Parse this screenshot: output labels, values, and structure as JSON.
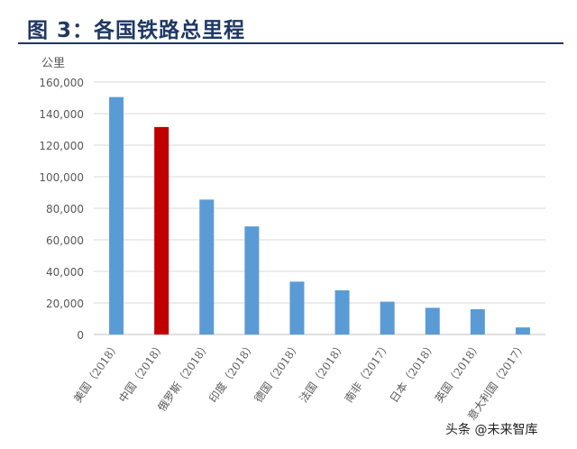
{
  "figure": {
    "title": "图 3：各国铁路总里程",
    "watermark": "头条 @未来智库"
  },
  "colors": {
    "title": "#1f3864",
    "bar_default": "#5b9bd5",
    "bar_highlight": "#c00000",
    "grid": "#d9d9d9",
    "axis": "#bfbfbf",
    "tick_text": "#595959"
  },
  "chart_data": {
    "type": "bar",
    "title": "",
    "xlabel": "",
    "ylabel": "公里",
    "ylim": [
      0,
      160000
    ],
    "yticks": [
      0,
      20000,
      40000,
      60000,
      80000,
      100000,
      120000,
      140000,
      160000
    ],
    "ytick_labels": [
      "0",
      "20,000",
      "40,000",
      "60,000",
      "80,000",
      "100,000",
      "120,000",
      "140,000",
      "160,000"
    ],
    "grid": true,
    "legend": "none",
    "categories": [
      "美国（2018）",
      "中国（2018）",
      "俄罗斯（2018）",
      "印度（2018）",
      "德国（2018）",
      "法国（2018）",
      "南非（2017）",
      "日本（2018）",
      "英国（2018）",
      "意大利国（2017）"
    ],
    "values": [
      150500,
      131500,
      85500,
      68500,
      33500,
      28000,
      20800,
      16900,
      16000,
      4500
    ],
    "highlight_index": 1
  }
}
